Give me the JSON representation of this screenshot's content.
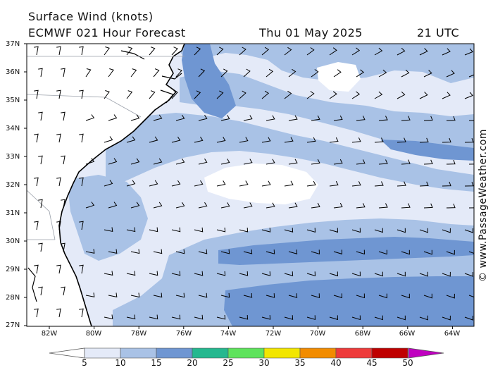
{
  "header": {
    "title": "Surface Wind (knots)",
    "model_line": "ECMWF 021 Hour Forecast",
    "date": "Thu 01 May 2025",
    "time": "21 UTC"
  },
  "watermark": "© www.PassageWeather.com",
  "latitude_labels": [
    "37N",
    "36N",
    "35N",
    "34N",
    "33N",
    "32N",
    "31N",
    "30N",
    "29N",
    "28N",
    "27N"
  ],
  "longitude_labels": [
    "82W",
    "80W",
    "78W",
    "76W",
    "74W",
    "72W",
    "70W",
    "68W",
    "66W",
    "64W"
  ],
  "colorbar": {
    "labels": [
      "5",
      "10",
      "15",
      "20",
      "25",
      "30",
      "35",
      "40",
      "45",
      "50"
    ],
    "colors": [
      "#e4eaf8",
      "#a9c2e6",
      "#6f96d2",
      "#25b88f",
      "#5ee35c",
      "#f2e600",
      "#f28c00",
      "#ee3b3b",
      "#bf0000",
      "#c000c0"
    ]
  },
  "colors": {
    "land": "#ffffff",
    "low_wind": "#e4eaf8",
    "mid_wind": "#a9c2e6",
    "high_wind": "#6f96d2",
    "coast": "#000000",
    "border": "#9aa0aa"
  }
}
